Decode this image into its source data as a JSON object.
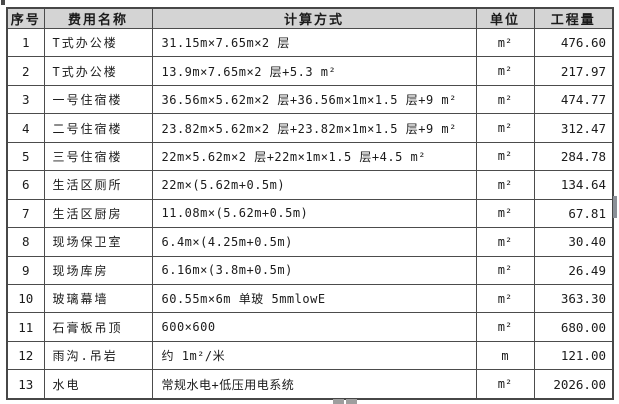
{
  "page": {
    "background_color": "#ffffff",
    "header_bg_color": "#d4d4d4",
    "border_color": "#4c4c4c",
    "text_color": "#1b1b1b"
  },
  "table": {
    "columns": [
      {
        "key": "no",
        "label": "序号"
      },
      {
        "key": "name",
        "label": "费用名称"
      },
      {
        "key": "method",
        "label": "计算方式"
      },
      {
        "key": "unit",
        "label": "单位"
      },
      {
        "key": "qty",
        "label": "工程量"
      }
    ],
    "rows": [
      {
        "no": "1",
        "name": "T式办公楼",
        "method": "31.15m×7.65m×2 层",
        "unit": "m²",
        "qty": "476.60"
      },
      {
        "no": "2",
        "name": "T式办公楼",
        "method": "13.9m×7.65m×2 层+5.3 m²",
        "unit": "m²",
        "qty": "217.97"
      },
      {
        "no": "3",
        "name": "一号住宿楼",
        "method": "36.56m×5.62m×2 层+36.56m×1m×1.5 层+9 m²",
        "unit": "m²",
        "qty": "474.77"
      },
      {
        "no": "4",
        "name": "二号住宿楼",
        "method": "23.82m×5.62m×2 层+23.82m×1m×1.5 层+9 m²",
        "unit": "m²",
        "qty": "312.47"
      },
      {
        "no": "5",
        "name": "三号住宿楼",
        "method": "22m×5.62m×2 层+22m×1m×1.5 层+4.5 m²",
        "unit": "m²",
        "qty": "284.78"
      },
      {
        "no": "6",
        "name": "生活区厕所",
        "method": "22m×(5.62m+0.5m)",
        "unit": "m²",
        "qty": "134.64"
      },
      {
        "no": "7",
        "name": "生活区厨房",
        "method": "11.08m×(5.62m+0.5m)",
        "unit": "m²",
        "qty": "67.81"
      },
      {
        "no": "8",
        "name": "现场保卫室",
        "method": "6.4m×(4.25m+0.5m)",
        "unit": "m²",
        "qty": "30.40"
      },
      {
        "no": "9",
        "name": "现场库房",
        "method": "6.16m×(3.8m+0.5m)",
        "unit": "m²",
        "qty": "26.49"
      },
      {
        "no": "10",
        "name": "玻璃幕墙",
        "method": "60.55m×6m  单玻 5mmlowE",
        "unit": "m²",
        "qty": "363.30"
      },
      {
        "no": "11",
        "name": "石膏板吊顶",
        "method": "600×600",
        "unit": "m²",
        "qty": "680.00"
      },
      {
        "no": "12",
        "name": "雨沟.吊岩",
        "method": "约 1m²/米",
        "unit": "m",
        "qty": "121.00"
      },
      {
        "no": "13",
        "name": "水电",
        "method": "常规水电+低压用电系统",
        "unit": "m²",
        "qty": "2026.00"
      }
    ]
  }
}
